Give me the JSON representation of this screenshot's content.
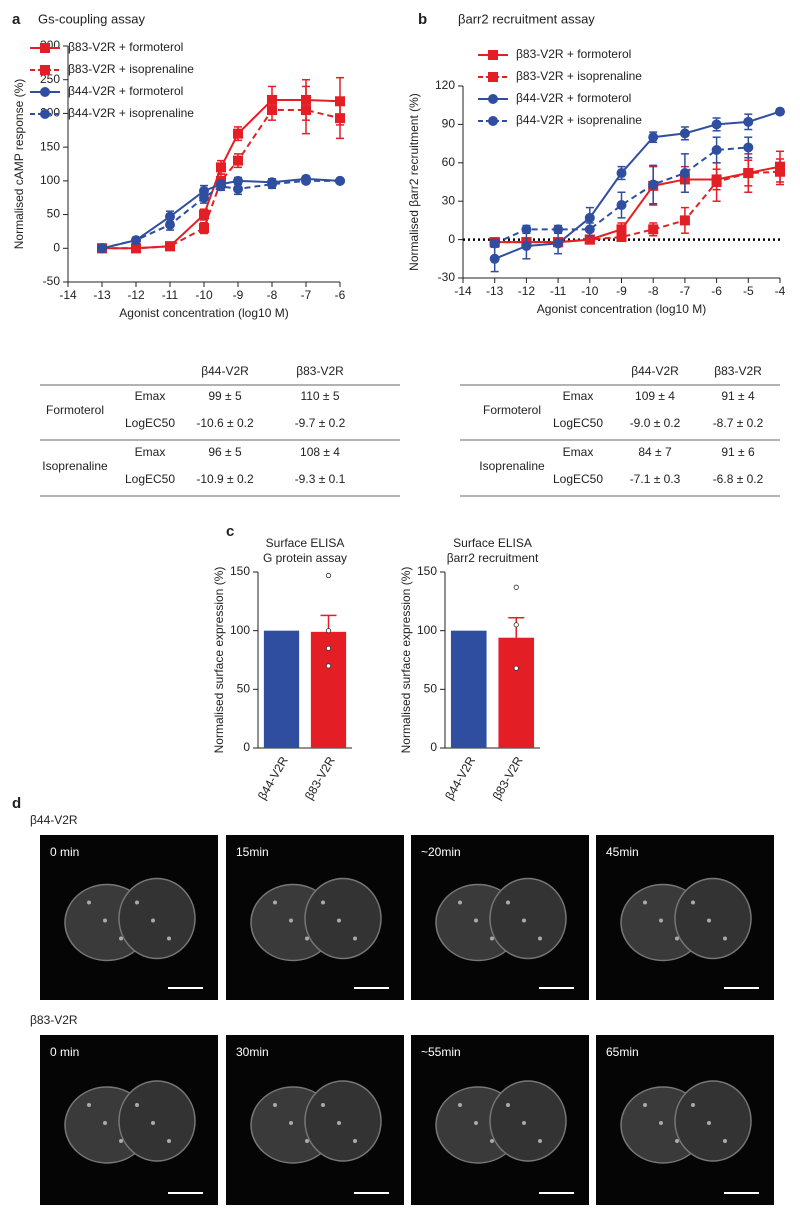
{
  "panel_labels": [
    "a",
    "b",
    "c",
    "d"
  ],
  "chart_data": [
    {
      "type": "line",
      "title": "Gs-coupling assay",
      "x_label": "Agonist concentration (log10 M)",
      "y_label": "Normalised cAMP response (%)",
      "x": [
        -13,
        -12,
        -11,
        -10,
        -9.5,
        -9,
        -8,
        -7,
        -6
      ],
      "xlim": [
        -14,
        -6
      ],
      "xticks": [
        -14,
        -13,
        -12,
        -11,
        -10,
        -9,
        -8,
        -7,
        -6
      ],
      "ylim": [
        -50,
        300
      ],
      "yticks": [
        -50,
        0,
        50,
        100,
        150,
        200,
        250,
        300
      ],
      "legend": "upper left",
      "series": [
        {
          "name": "β83-V2R + formoterol",
          "color": "#e31e24",
          "line": "solid",
          "marker": "square",
          "values": [
            0,
            0,
            3,
            50,
            120,
            170,
            220,
            220,
            218
          ],
          "errors": [
            2,
            2,
            2,
            8,
            10,
            10,
            20,
            30,
            35
          ]
        },
        {
          "name": "β83-V2R + isoprenaline",
          "color": "#e31e24",
          "line": "dashed",
          "marker": "square",
          "values": [
            0,
            0,
            3,
            30,
            100,
            130,
            205,
            205,
            193
          ],
          "errors": [
            2,
            2,
            2,
            8,
            10,
            10,
            15,
            35,
            30
          ]
        },
        {
          "name": "β44-V2R + formoterol",
          "color": "#2f4ea0",
          "line": "solid",
          "marker": "circle",
          "values": [
            0,
            12,
            47,
            85,
            95,
            100,
            98,
            103,
            100
          ],
          "errors": [
            2,
            3,
            8,
            8,
            5,
            5,
            5,
            4,
            3
          ]
        },
        {
          "name": "β44-V2R + isoprenaline",
          "color": "#2f4ea0",
          "line": "dashed",
          "marker": "circle",
          "values": [
            0,
            12,
            35,
            75,
            92,
            88,
            95,
            100,
            100
          ],
          "errors": [
            2,
            3,
            8,
            8,
            6,
            8,
            6,
            4,
            3
          ]
        }
      ]
    },
    {
      "type": "line",
      "title": "βarr2 recruitment assay",
      "x_label": "Agonist concentration (log10 M)",
      "y_label": "Normalised βarr2 recruitment (%)",
      "x": [
        -13,
        -12,
        -11,
        -10,
        -9,
        -8,
        -7,
        -6,
        -5,
        -4
      ],
      "xlim": [
        -14,
        -4
      ],
      "xticks": [
        -14,
        -13,
        -12,
        -11,
        -10,
        -9,
        -8,
        -7,
        -6,
        -5,
        -4
      ],
      "ylim": [
        -30,
        120
      ],
      "yticks": [
        -30,
        0,
        30,
        60,
        90,
        120
      ],
      "legend": "upper left",
      "zero_line": true,
      "series": [
        {
          "name": "β83-V2R + formoterol",
          "color": "#e31e24",
          "line": "solid",
          "marker": "square",
          "values": [
            -2,
            -2,
            -2,
            0,
            8,
            42,
            47,
            47,
            52,
            57
          ],
          "errors": [
            2,
            2,
            2,
            3,
            5,
            15,
            10,
            8,
            10,
            12
          ]
        },
        {
          "name": "β83-V2R + isoprenaline",
          "color": "#e31e24",
          "line": "dashed",
          "marker": "square",
          "values": [
            -2,
            -2,
            -2,
            0,
            2,
            8,
            15,
            45,
            52,
            53
          ],
          "errors": [
            2,
            2,
            2,
            2,
            3,
            5,
            10,
            15,
            15,
            10
          ]
        },
        {
          "name": "β44-V2R + formoterol",
          "color": "#2f4ea0",
          "line": "solid",
          "marker": "circle",
          "values": [
            -15,
            -5,
            -3,
            17,
            52,
            80,
            83,
            90,
            92,
            100
          ],
          "errors": [
            10,
            10,
            8,
            8,
            5,
            4,
            5,
            5,
            6,
            2
          ]
        },
        {
          "name": "β44-V2R + isoprenaline",
          "color": "#2f4ea0",
          "line": "dashed",
          "marker": "circle",
          "values": [
            -3,
            8,
            8,
            8,
            27,
            43,
            52,
            70,
            72,
            null
          ],
          "errors": [
            3,
            3,
            3,
            5,
            10,
            15,
            15,
            10,
            8,
            null
          ]
        }
      ]
    },
    {
      "type": "bar",
      "title": [
        "Surface ELISA",
        "G protein assay"
      ],
      "y_label": "Normalised surface expression (%)",
      "categories": [
        "β44-V2R",
        "β83-V2R"
      ],
      "values": [
        100,
        99
      ],
      "errors": [
        null,
        14
      ],
      "colors": [
        "#2f4ea0",
        "#e31e24"
      ],
      "points": [
        null,
        [
          147,
          100,
          85,
          70
        ]
      ],
      "ylim": [
        0,
        150
      ],
      "yticks": [
        0,
        50,
        100,
        150
      ]
    },
    {
      "type": "bar",
      "title": [
        "Surface ELISA",
        "βarr2 recruitment"
      ],
      "y_label": "Normalised surface expression (%)",
      "categories": [
        "β44-V2R",
        "β83-V2R"
      ],
      "values": [
        100,
        94
      ],
      "errors": [
        null,
        17
      ],
      "colors": [
        "#2f4ea0",
        "#e31e24"
      ],
      "points": [
        null,
        [
          137,
          105,
          68
        ]
      ],
      "ylim": [
        0,
        150
      ],
      "yticks": [
        0,
        50,
        100,
        150
      ]
    }
  ],
  "tables": [
    {
      "header": [
        "β44-V2R",
        "β83-V2R"
      ],
      "groups": [
        {
          "name": "Formoterol",
          "rows": [
            {
              "param": "Emax",
              "values": [
                "99 ± 5",
                "110 ± 5"
              ]
            },
            {
              "param": "LogEC50",
              "values": [
                "-10.6 ± 0.2",
                "-9.7 ± 0.2"
              ]
            }
          ]
        },
        {
          "name": "Isoprenaline",
          "rows": [
            {
              "param": "Emax",
              "values": [
                "96 ± 5",
                "108 ± 4"
              ]
            },
            {
              "param": "LogEC50",
              "values": [
                "-10.9 ± 0.2",
                "-9.3 ± 0.1"
              ]
            }
          ]
        }
      ]
    },
    {
      "header": [
        "β44-V2R",
        "β83-V2R"
      ],
      "groups": [
        {
          "name": "Formoterol",
          "rows": [
            {
              "param": "Emax",
              "values": [
                "109 ± 4",
                "91 ± 4"
              ]
            },
            {
              "param": "LogEC50",
              "values": [
                "-9.0 ± 0.2",
                "-8.7 ± 0.2"
              ]
            }
          ]
        },
        {
          "name": "Isoprenaline",
          "rows": [
            {
              "param": "Emax",
              "values": [
                "84 ± 7",
                "91 ± 6"
              ]
            },
            {
              "param": "LogEC50",
              "values": [
                "-7.1 ± 0.3",
                "-6.8 ± 0.2"
              ]
            }
          ]
        }
      ]
    }
  ],
  "microscopy": {
    "rows": [
      {
        "label": "β44-V2R",
        "panels": [
          "0 min",
          "15min",
          "~20min",
          "45min"
        ]
      },
      {
        "label": "β83-V2R",
        "panels": [
          "0 min",
          "30min",
          "~55min",
          "65min"
        ]
      }
    ]
  }
}
